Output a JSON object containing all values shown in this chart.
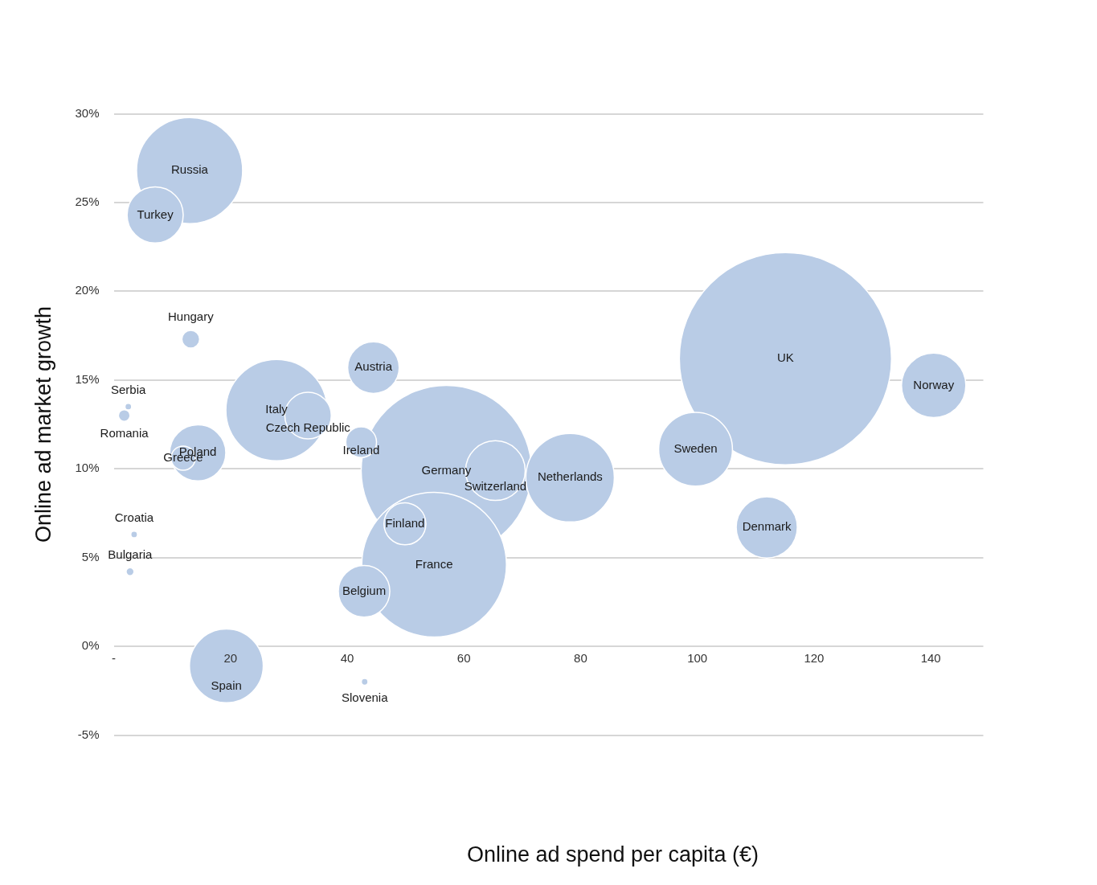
{
  "chart_data": {
    "type": "bubble",
    "xlabel": "Online ad spend per capita (€)",
    "ylabel": "Online ad market growth",
    "xlim": [
      0,
      149
    ],
    "xticks": [
      {
        "value": 0,
        "label": "-"
      },
      20,
      40,
      60,
      80,
      100,
      120,
      140
    ],
    "ylim": [
      -5,
      30
    ],
    "yticks": [
      {
        "value": -5,
        "label": "-5%"
      },
      {
        "value": 0,
        "label": "0%"
      },
      {
        "value": 5,
        "label": "5%"
      },
      {
        "value": 10,
        "label": "10%"
      },
      {
        "value": 15,
        "label": "15%"
      },
      {
        "value": 20,
        "label": "20%"
      },
      {
        "value": 25,
        "label": "25%"
      },
      {
        "value": 30,
        "label": "30%"
      }
    ],
    "grid": "y",
    "legend": false,
    "series": [
      {
        "name": "Russia",
        "color": "#b9cce6",
        "x": [
          13.0
        ],
        "values": [
          26.8
        ],
        "sizes": [
          0.25
        ]
      },
      {
        "name": "Turkey",
        "color": "#b9cce6",
        "x": [
          7.1
        ],
        "values": [
          24.3
        ],
        "sizes": [
          0.07
        ]
      },
      {
        "name": "Hungary",
        "color": "#b9cce6",
        "x": [
          13.2
        ],
        "values": [
          17.3
        ],
        "sizes": [
          0.007
        ]
      },
      {
        "name": "Serbia",
        "color": "#b9cce6",
        "x": [
          2.5
        ],
        "values": [
          13.5
        ],
        "sizes": [
          0.001
        ]
      },
      {
        "name": "Romania",
        "color": "#b9cce6",
        "x": [
          1.8
        ],
        "values": [
          13.0
        ],
        "sizes": [
          0.003
        ]
      },
      {
        "name": "Italy",
        "color": "#b9cce6",
        "x": [
          27.9
        ],
        "values": [
          13.3
        ],
        "sizes": [
          0.228
        ]
      },
      {
        "name": "Czech Republic",
        "color": "#b9cce6",
        "x": [
          33.3
        ],
        "values": [
          13.0
        ],
        "sizes": [
          0.048
        ]
      },
      {
        "name": "Austria",
        "color": "#b9cce6",
        "x": [
          44.5
        ],
        "values": [
          15.7
        ],
        "sizes": [
          0.059
        ]
      },
      {
        "name": "Ireland",
        "color": "#b9cce6",
        "x": [
          42.4
        ],
        "values": [
          11.5
        ],
        "sizes": [
          0.021
        ]
      },
      {
        "name": "Poland",
        "color": "#b9cce6",
        "x": [
          14.4
        ],
        "values": [
          10.9
        ],
        "sizes": [
          0.07
        ]
      },
      {
        "name": "Greece",
        "color": "#b9cce6",
        "x": [
          11.9
        ],
        "values": [
          10.6
        ],
        "sizes": [
          0.013
        ]
      },
      {
        "name": "Germany",
        "color": "#b9cce6",
        "x": [
          57.0
        ],
        "values": [
          9.9
        ],
        "sizes": [
          0.645
        ]
      },
      {
        "name": "Switzerland",
        "color": "#b9cce6",
        "x": [
          65.4
        ],
        "values": [
          9.9
        ],
        "sizes": [
          0.079
        ]
      },
      {
        "name": "Netherlands",
        "color": "#b9cce6",
        "x": [
          78.2
        ],
        "values": [
          9.5
        ],
        "sizes": [
          0.174
        ]
      },
      {
        "name": "France",
        "color": "#b9cce6",
        "x": [
          54.9
        ],
        "values": [
          4.6
        ],
        "sizes": [
          0.465
        ]
      },
      {
        "name": "Finland",
        "color": "#b9cce6",
        "x": [
          49.9
        ],
        "values": [
          6.9
        ],
        "sizes": [
          0.039
        ]
      },
      {
        "name": "Belgium",
        "color": "#b9cce6",
        "x": [
          42.9
        ],
        "values": [
          3.1
        ],
        "sizes": [
          0.059
        ]
      },
      {
        "name": "Spain",
        "color": "#b9cce6",
        "x": [
          19.3
        ],
        "values": [
          -1.1
        ],
        "sizes": [
          0.121
        ]
      },
      {
        "name": "Slovenia",
        "color": "#b9cce6",
        "x": [
          43.0
        ],
        "values": [
          -2.0
        ],
        "sizes": [
          0.001
        ]
      },
      {
        "name": "Croatia",
        "color": "#b9cce6",
        "x": [
          3.5
        ],
        "values": [
          6.3
        ],
        "sizes": [
          0.001
        ]
      },
      {
        "name": "Bulgaria",
        "color": "#b9cce6",
        "x": [
          2.8
        ],
        "values": [
          4.2
        ],
        "sizes": [
          0.0014
        ]
      },
      {
        "name": "Sweden",
        "color": "#b9cce6",
        "x": [
          99.7
        ],
        "values": [
          11.1
        ],
        "sizes": [
          0.121
        ]
      },
      {
        "name": "Denmark",
        "color": "#b9cce6",
        "x": [
          111.9
        ],
        "values": [
          6.7
        ],
        "sizes": [
          0.083
        ]
      },
      {
        "name": "UK",
        "color": "#b9cce6",
        "x": [
          115.1
        ],
        "values": [
          16.2
        ],
        "sizes": [
          1
        ]
      },
      {
        "name": "Norway",
        "color": "#b9cce6",
        "x": [
          140.5
        ],
        "values": [
          14.7
        ],
        "sizes": [
          0.092
        ]
      }
    ]
  }
}
